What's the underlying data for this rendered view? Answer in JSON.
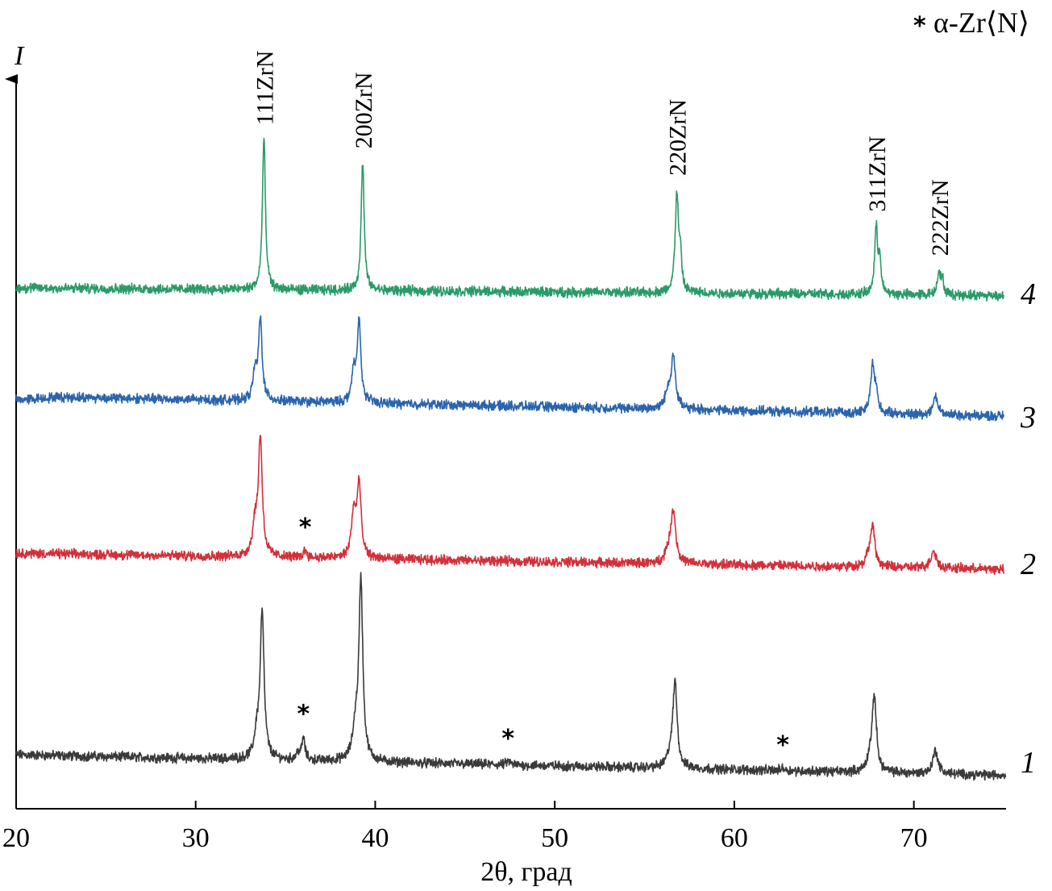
{
  "chart_data": {
    "type": "line",
    "xlabel": "2θ, град",
    "ylabel": "I",
    "xlim": [
      20,
      75
    ],
    "x_ticks": [
      20,
      30,
      40,
      50,
      60,
      70
    ],
    "legend": {
      "marker": "*",
      "text": "α-Zr⟨N⟩",
      "placement": "top-right"
    },
    "peak_labels": [
      {
        "text": "111ZrN",
        "x": 33.8
      },
      {
        "text": "200ZrN",
        "x": 39.3
      },
      {
        "text": "220ZrN",
        "x": 56.8
      },
      {
        "text": "311ZrN",
        "x": 67.9
      },
      {
        "text": "222ZrN",
        "x": 71.4
      }
    ],
    "series": [
      {
        "name": "1",
        "color": "#3a3a3a",
        "baseline": [
          [
            20,
            0
          ],
          [
            75,
            -0.14
          ]
        ],
        "peaks": [
          {
            "x": 33.7,
            "h": 1.0,
            "w": 0.13
          },
          {
            "x": 33.4,
            "h": 0.15,
            "w": 0.15
          },
          {
            "x": 36.0,
            "h": 0.15,
            "w": 0.1
          },
          {
            "x": 35.7,
            "h": 0.05,
            "w": 0.12
          },
          {
            "x": 39.2,
            "h": 1.22,
            "w": 0.13
          },
          {
            "x": 38.9,
            "h": 0.2,
            "w": 0.18
          },
          {
            "x": 47.4,
            "h": 0.025,
            "w": 0.12
          },
          {
            "x": 56.7,
            "h": 0.57,
            "w": 0.14
          },
          {
            "x": 56.45,
            "h": 0.08,
            "w": 0.2
          },
          {
            "x": 62.7,
            "h": 0.02,
            "w": 0.12
          },
          {
            "x": 67.8,
            "h": 0.51,
            "w": 0.14
          },
          {
            "x": 67.55,
            "h": 0.08,
            "w": 0.18
          },
          {
            "x": 71.2,
            "h": 0.16,
            "w": 0.17
          }
        ],
        "stars": [
          36.0,
          47.4,
          62.7
        ]
      },
      {
        "name": "2",
        "color": "#d2303a",
        "baseline": [
          [
            20,
            0
          ],
          [
            75,
            -0.11
          ]
        ],
        "peaks": [
          {
            "x": 33.6,
            "h": 0.8,
            "w": 0.13
          },
          {
            "x": 33.3,
            "h": 0.2,
            "w": 0.16
          },
          {
            "x": 36.1,
            "h": 0.05,
            "w": 0.12
          },
          {
            "x": 39.1,
            "h": 0.5,
            "w": 0.13
          },
          {
            "x": 38.8,
            "h": 0.3,
            "w": 0.15
          },
          {
            "x": 56.6,
            "h": 0.36,
            "w": 0.16
          },
          {
            "x": 56.3,
            "h": 0.07,
            "w": 0.2
          },
          {
            "x": 67.7,
            "h": 0.27,
            "w": 0.15
          },
          {
            "x": 67.45,
            "h": 0.05,
            "w": 0.18
          },
          {
            "x": 71.1,
            "h": 0.12,
            "w": 0.18
          }
        ],
        "stars": [
          36.1
        ]
      },
      {
        "name": "3",
        "color": "#2b64ad",
        "baseline": [
          [
            20,
            0
          ],
          [
            22.5,
            0.02
          ],
          [
            75,
            -0.11
          ]
        ],
        "peaks": [
          {
            "x": 33.6,
            "h": 0.55,
            "w": 0.12
          },
          {
            "x": 33.3,
            "h": 0.18,
            "w": 0.13
          },
          {
            "x": 39.1,
            "h": 0.55,
            "w": 0.12
          },
          {
            "x": 38.8,
            "h": 0.2,
            "w": 0.13
          },
          {
            "x": 56.6,
            "h": 0.35,
            "w": 0.15
          },
          {
            "x": 56.3,
            "h": 0.1,
            "w": 0.18
          },
          {
            "x": 67.7,
            "h": 0.32,
            "w": 0.13
          },
          {
            "x": 67.9,
            "h": 0.12,
            "w": 0.1
          },
          {
            "x": 71.2,
            "h": 0.13,
            "w": 0.15
          }
        ],
        "stars": []
      },
      {
        "name": "4",
        "color": "#2a9a68",
        "baseline": [
          [
            20,
            0
          ],
          [
            75,
            -0.05
          ]
        ],
        "peaks": [
          {
            "x": 33.8,
            "h": 1.0,
            "w": 0.1
          },
          {
            "x": 39.3,
            "h": 0.85,
            "w": 0.1
          },
          {
            "x": 56.8,
            "h": 0.66,
            "w": 0.11
          },
          {
            "x": 57.0,
            "h": 0.2,
            "w": 0.08
          },
          {
            "x": 67.9,
            "h": 0.43,
            "w": 0.1
          },
          {
            "x": 68.1,
            "h": 0.22,
            "w": 0.08
          },
          {
            "x": 71.4,
            "h": 0.16,
            "w": 0.11
          },
          {
            "x": 71.6,
            "h": 0.08,
            "w": 0.08
          }
        ],
        "stars": []
      }
    ]
  }
}
